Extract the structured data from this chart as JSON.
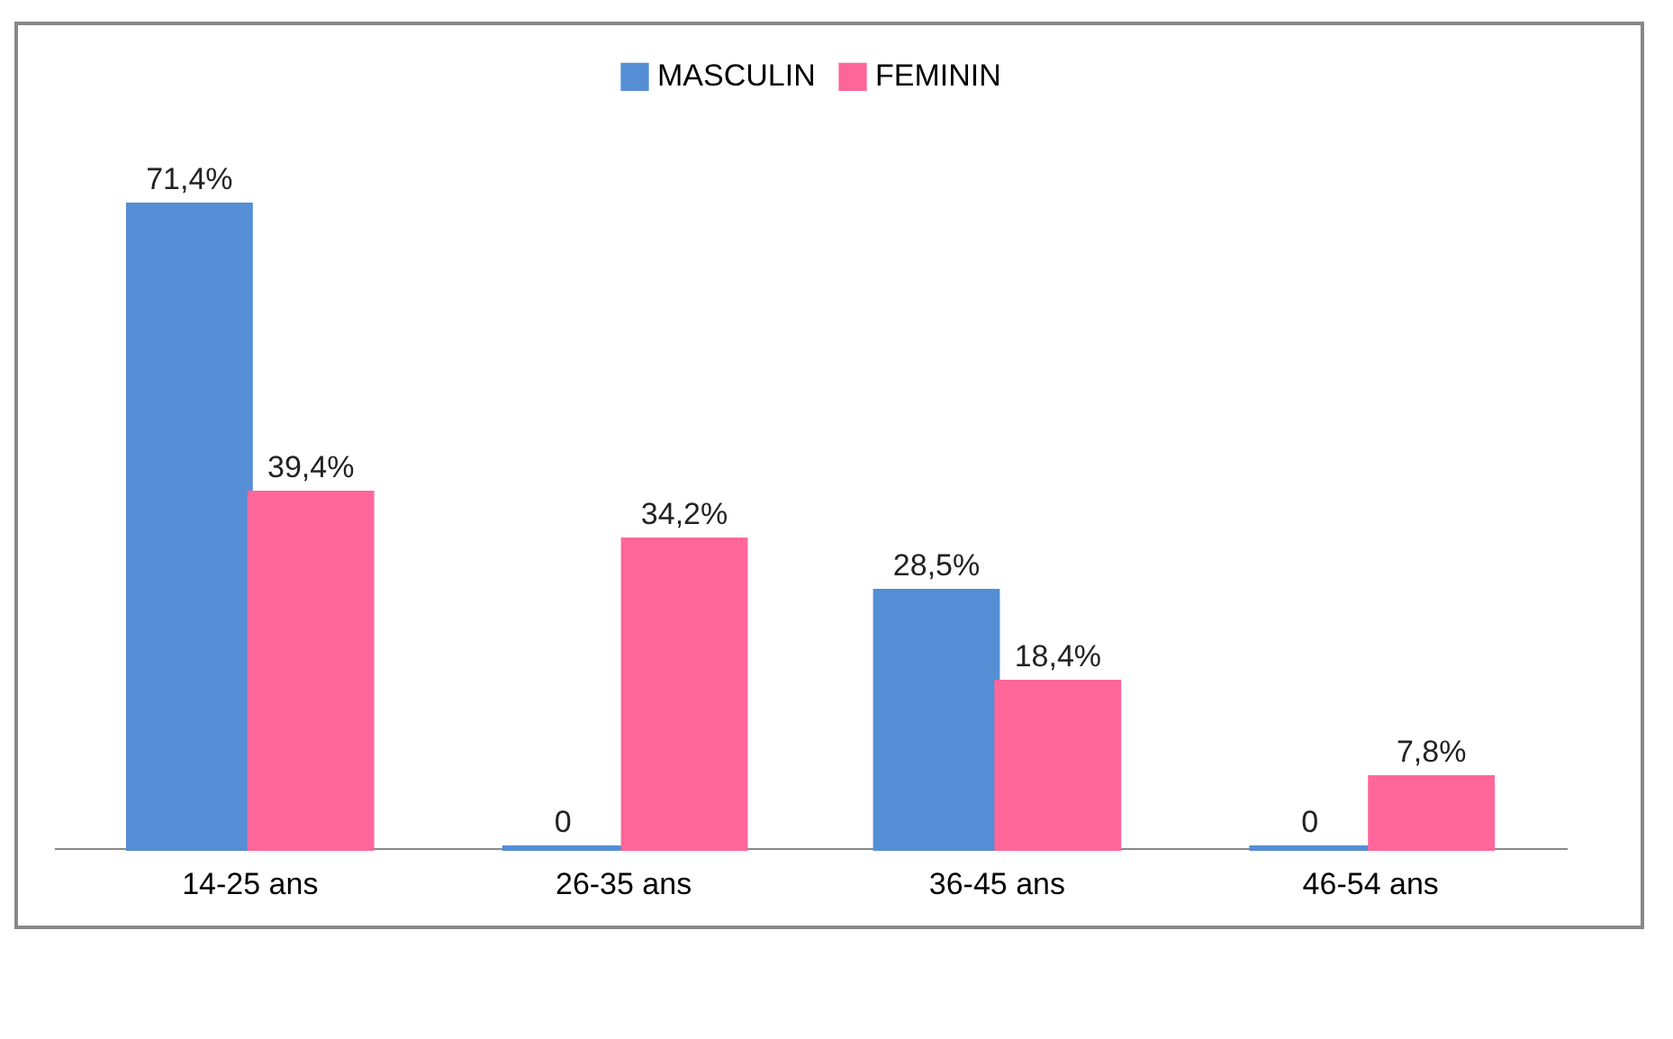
{
  "chart_data": {
    "type": "bar",
    "categories": [
      "14-25 ans",
      "26-35 ans",
      "36-45 ans",
      "46-54 ans"
    ],
    "series": [
      {
        "name": "MASCULIN",
        "color": "#558ed5",
        "values": [
          71.4,
          0,
          28.5,
          0
        ],
        "value_labels": [
          "71,4%",
          "0",
          "28,5%",
          "0"
        ]
      },
      {
        "name": "FEMININ",
        "color": "#ff6699",
        "values": [
          39.4,
          34.2,
          18.4,
          7.8
        ],
        "value_labels": [
          "39,4%",
          "34,2%",
          "18,4%",
          "7,8%"
        ]
      }
    ],
    "legend": "top",
    "grid": false
  }
}
